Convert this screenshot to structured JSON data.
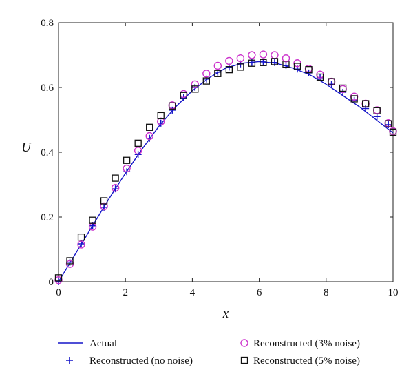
{
  "chart_data": {
    "type": "scatter",
    "xlabel": "x",
    "ylabel": "U",
    "xlim": [
      0,
      10
    ],
    "ylim": [
      0,
      0.8
    ],
    "x_ticks": [
      "0",
      "2",
      "4",
      "6",
      "8",
      "10"
    ],
    "y_ticks": [
      "0",
      "0.2",
      "0.4",
      "0.6",
      "0.8"
    ],
    "grid": false,
    "legend_placement": "bottom",
    "series": [
      {
        "name": "Actual",
        "style": "line",
        "color": "#1515c8",
        "x": [
          0,
          0.5,
          1.0,
          1.5,
          2.0,
          2.5,
          3.0,
          3.5,
          4.0,
          4.5,
          5.0,
          5.5,
          6.0,
          6.5,
          7.0,
          7.5,
          8.0,
          8.5,
          9.0,
          9.5,
          10.0
        ],
        "y": [
          0.0,
          0.085,
          0.17,
          0.255,
          0.335,
          0.41,
          0.48,
          0.54,
          0.59,
          0.63,
          0.66,
          0.675,
          0.68,
          0.675,
          0.66,
          0.64,
          0.61,
          0.575,
          0.54,
          0.5,
          0.46
        ]
      },
      {
        "name": "Reconstructed (no noise)",
        "style": "plus",
        "color": "#1515c8",
        "x": [
          0,
          0.34,
          0.68,
          1.02,
          1.36,
          1.7,
          2.04,
          2.38,
          2.72,
          3.06,
          3.4,
          3.74,
          4.08,
          4.42,
          4.76,
          5.1,
          5.44,
          5.78,
          6.12,
          6.46,
          6.8,
          7.14,
          7.48,
          7.82,
          8.16,
          8.5,
          8.84,
          9.18,
          9.52,
          9.86
        ],
        "y": [
          0.0,
          0.06,
          0.117,
          0.173,
          0.23,
          0.287,
          0.34,
          0.393,
          0.443,
          0.49,
          0.53,
          0.568,
          0.6,
          0.626,
          0.647,
          0.663,
          0.673,
          0.677,
          0.679,
          0.677,
          0.668,
          0.657,
          0.645,
          0.63,
          0.61,
          0.585,
          0.56,
          0.535,
          0.51,
          0.485
        ]
      },
      {
        "name": "Reconstructed (3% noise)",
        "style": "circle",
        "color": "#cc33cc",
        "x": [
          0,
          0.34,
          0.68,
          1.02,
          1.36,
          1.7,
          2.04,
          2.38,
          2.72,
          3.06,
          3.4,
          3.74,
          4.08,
          4.42,
          4.76,
          5.1,
          5.44,
          5.78,
          6.12,
          6.46,
          6.8,
          7.14,
          7.48,
          7.82,
          8.16,
          8.5,
          8.84,
          9.18,
          9.52,
          9.86,
          10.0
        ],
        "y": [
          0.005,
          0.055,
          0.115,
          0.17,
          0.233,
          0.29,
          0.35,
          0.405,
          0.45,
          0.495,
          0.545,
          0.58,
          0.61,
          0.643,
          0.667,
          0.682,
          0.69,
          0.7,
          0.702,
          0.7,
          0.69,
          0.675,
          0.658,
          0.64,
          0.618,
          0.595,
          0.572,
          0.55,
          0.53,
          0.49,
          0.465
        ]
      },
      {
        "name": "Reconstructed (5% noise)",
        "style": "square",
        "color": "#111111",
        "x": [
          0,
          0.34,
          0.68,
          1.02,
          1.36,
          1.7,
          2.04,
          2.38,
          2.72,
          3.06,
          3.4,
          3.74,
          4.08,
          4.42,
          4.76,
          5.1,
          5.44,
          5.78,
          6.12,
          6.46,
          6.8,
          7.14,
          7.48,
          7.82,
          8.16,
          8.5,
          8.84,
          9.18,
          9.52,
          9.86,
          10.0
        ],
        "y": [
          0.012,
          0.065,
          0.138,
          0.19,
          0.25,
          0.32,
          0.375,
          0.428,
          0.477,
          0.513,
          0.543,
          0.575,
          0.595,
          0.62,
          0.643,
          0.655,
          0.663,
          0.675,
          0.677,
          0.68,
          0.672,
          0.665,
          0.655,
          0.632,
          0.618,
          0.598,
          0.565,
          0.55,
          0.528,
          0.488,
          0.462
        ]
      }
    ]
  }
}
